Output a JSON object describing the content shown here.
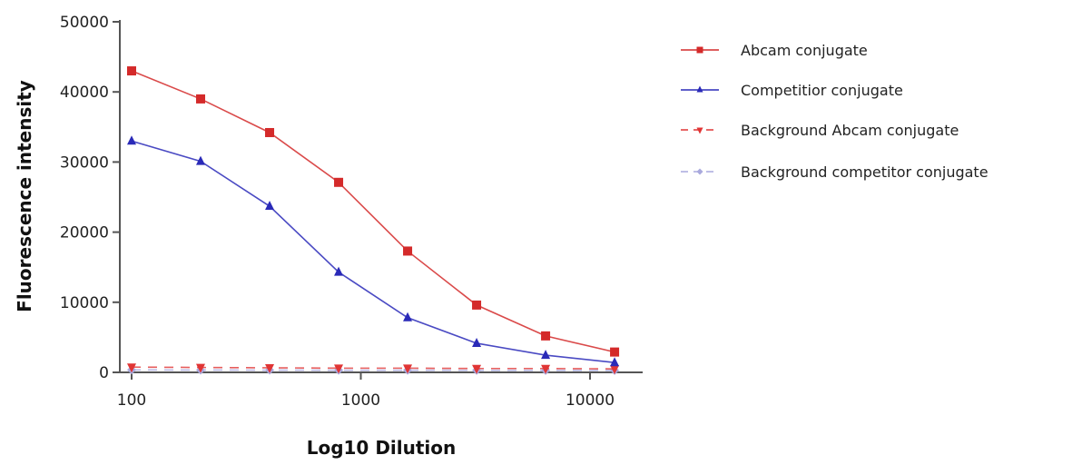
{
  "chart_data": {
    "type": "line",
    "title": "",
    "xlabel": "Log10 Dilution",
    "ylabel": "Fluorescence intensity",
    "xscale": "log",
    "xlim": [
      100,
      13000
    ],
    "ylim": [
      0,
      50000
    ],
    "x_ticks": [
      100,
      1000,
      10000
    ],
    "x_tick_labels": [
      "100",
      "1000",
      "10000"
    ],
    "y_ticks": [
      0,
      10000,
      20000,
      30000,
      40000,
      50000
    ],
    "y_tick_labels": [
      "0",
      "10000",
      "20000",
      "30000",
      "40000",
      "50000"
    ],
    "grid": false,
    "legend_position": "right",
    "x": [
      100,
      200,
      400,
      800,
      1600,
      3200,
      6400,
      12800
    ],
    "series": [
      {
        "name": "Abcam conjugate",
        "color": "#d42a2a",
        "marker": "square",
        "dashed": false,
        "values": [
          43000,
          39000,
          34200,
          27100,
          17300,
          9600,
          5200,
          2900
        ]
      },
      {
        "name": "Competitior conjugate",
        "color": "#2a2ab8",
        "marker": "triangle-up",
        "dashed": false,
        "values": [
          33000,
          30100,
          23700,
          14300,
          7800,
          4150,
          2450,
          1400
        ]
      },
      {
        "name": "Background Abcam conjugate",
        "color": "#e03535",
        "marker": "triangle-down",
        "dashed": true,
        "values": [
          750,
          700,
          650,
          600,
          600,
          550,
          550,
          500
        ]
      },
      {
        "name": "Background competitor conjugate",
        "color": "#a9a9dd",
        "marker": "diamond",
        "dashed": true,
        "values": [
          350,
          330,
          320,
          300,
          300,
          290,
          280,
          280
        ]
      }
    ]
  }
}
